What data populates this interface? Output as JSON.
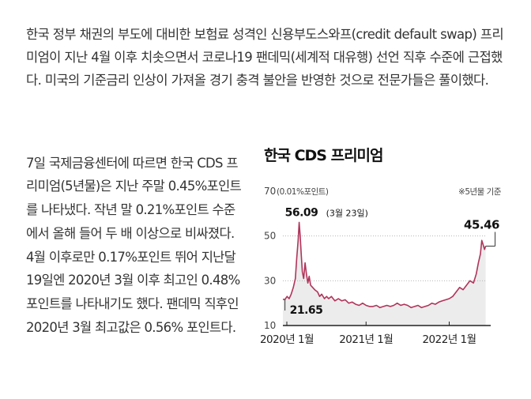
{
  "article": {
    "paragraph1": "한국 정부 채권의 부도에 대비한 보험료 성격인 신용부도스와프(credit default swap) 프리미엄이 지난 4월 이후 치솟으면서 코로나19 팬데믹(세계적 대유행) 선언 직후 수준에 근접했다. 미국의 기준금리 인상이 가져올 경기 충격 불안을 반영한 것으로 전문가들은 풀이했다.",
    "paragraph2": "7일 국제금융센터에 따르면 한국 CDS 프리미엄(5년물)은 지난 주말 0.45%포인트를 나타냈다. 작년 말 0.21%포인트 수준에서 올해 들어 두 배 이상으로 비싸졌다. 4월 이후로만 0.17%포인트 뛰어 지난달 19일엔 2020년 3월 이후 최고인 0.48% 포인트를 나타내기도 했다. 팬데믹 직후인 2020년 3월 최고값은 0.56% 포인트다."
  },
  "chart_data": {
    "type": "line",
    "title": "한국 CDS 프리미엄",
    "unit_label": "(0.01%포인트)",
    "note": "※5년물 기준",
    "ylim": [
      10,
      70
    ],
    "yticks": [
      70,
      50,
      30,
      10
    ],
    "xticks": [
      {
        "label": "2020년 1월",
        "t": 0
      },
      {
        "label": "2021년 1월",
        "t": 12
      },
      {
        "label": "2022년 1월",
        "t": 24
      }
    ],
    "annotations": {
      "peak": {
        "value": "56.09",
        "date": "(3월 23일)"
      },
      "low": {
        "value": "21.65"
      },
      "end": {
        "value": "45.46"
      }
    },
    "series": [
      {
        "color": "#b0345a",
        "points": [
          [
            0,
            21.7
          ],
          [
            0.3,
            21.65
          ],
          [
            0.6,
            23
          ],
          [
            0.9,
            22
          ],
          [
            1.2,
            24
          ],
          [
            1.5,
            27
          ],
          [
            1.8,
            31
          ],
          [
            2.0,
            40
          ],
          [
            2.2,
            48
          ],
          [
            2.35,
            56.09
          ],
          [
            2.5,
            50
          ],
          [
            2.65,
            42
          ],
          [
            2.8,
            34
          ],
          [
            3.0,
            31
          ],
          [
            3.2,
            38
          ],
          [
            3.4,
            33
          ],
          [
            3.6,
            29
          ],
          [
            3.8,
            32
          ],
          [
            4.0,
            28
          ],
          [
            4.3,
            27
          ],
          [
            4.6,
            26
          ],
          [
            5.0,
            25
          ],
          [
            5.3,
            23
          ],
          [
            5.6,
            24
          ],
          [
            6.0,
            22
          ],
          [
            6.3,
            23
          ],
          [
            6.6,
            22
          ],
          [
            7.0,
            23
          ],
          [
            7.5,
            21
          ],
          [
            8.0,
            22
          ],
          [
            8.5,
            21
          ],
          [
            9.0,
            21.5
          ],
          [
            9.5,
            20
          ],
          [
            10.0,
            20.5
          ],
          [
            10.5,
            19.5
          ],
          [
            11.0,
            19
          ],
          [
            11.5,
            20
          ],
          [
            12.0,
            19
          ],
          [
            12.5,
            18.5
          ],
          [
            13.0,
            18.5
          ],
          [
            13.5,
            19
          ],
          [
            14.0,
            18
          ],
          [
            14.5,
            18.5
          ],
          [
            15.0,
            19
          ],
          [
            15.5,
            18.5
          ],
          [
            16.0,
            19
          ],
          [
            16.5,
            20
          ],
          [
            17.0,
            19
          ],
          [
            17.5,
            19.5
          ],
          [
            18.0,
            19
          ],
          [
            18.5,
            18
          ],
          [
            19.0,
            18.5
          ],
          [
            19.5,
            19
          ],
          [
            20.0,
            18
          ],
          [
            20.5,
            18.5
          ],
          [
            21.0,
            19
          ],
          [
            21.5,
            20
          ],
          [
            22.0,
            19.5
          ],
          [
            22.5,
            20.5
          ],
          [
            23.0,
            21
          ],
          [
            23.5,
            21.5
          ],
          [
            24.0,
            22
          ],
          [
            24.5,
            23
          ],
          [
            25.0,
            25
          ],
          [
            25.5,
            27
          ],
          [
            26.0,
            26
          ],
          [
            26.5,
            28
          ],
          [
            27.0,
            30
          ],
          [
            27.5,
            29
          ],
          [
            27.9,
            33
          ],
          [
            28.2,
            38
          ],
          [
            28.5,
            42
          ],
          [
            28.7,
            48
          ],
          [
            28.9,
            46
          ],
          [
            29.1,
            44
          ],
          [
            29.25,
            45.46
          ]
        ]
      }
    ]
  }
}
